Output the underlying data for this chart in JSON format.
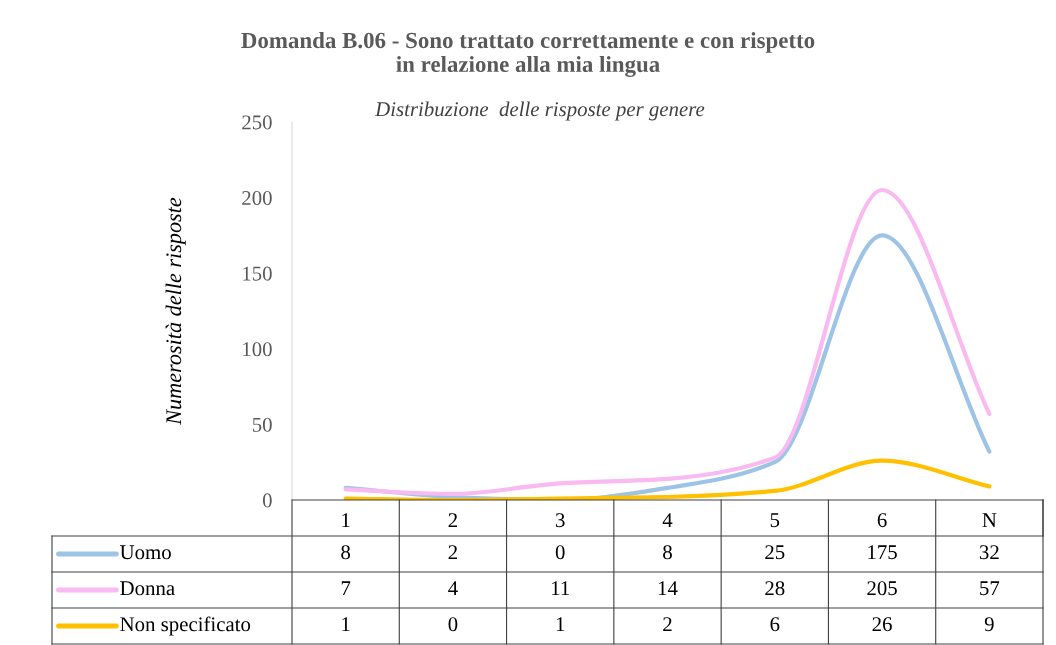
{
  "chart_data": {
    "type": "line",
    "title": "Domanda B.06 - Sono trattato correttamente e con rispetto\nin relazione alla mia lingua",
    "subtitle": "Distribuzione  delle risposte per genere",
    "ylabel": "Numerosità delle risposte",
    "categories": [
      "1",
      "2",
      "3",
      "4",
      "5",
      "6",
      "N"
    ],
    "series": [
      {
        "name": "Uomo",
        "color": "#9dc3e6",
        "values": [
          8,
          2,
          0,
          8,
          25,
          175,
          32
        ]
      },
      {
        "name": "Donna",
        "color": "#f9b9f1",
        "values": [
          7,
          4,
          11,
          14,
          28,
          205,
          57
        ]
      },
      {
        "name": "Non specificato",
        "color": "#ffc000",
        "values": [
          1,
          0,
          1,
          2,
          6,
          26,
          9
        ]
      }
    ],
    "ylim": [
      0,
      250
    ],
    "yticks": [
      0,
      50,
      100,
      150,
      200,
      250
    ],
    "grid": false,
    "legend": "bottom",
    "data_labels": true,
    "marker": "none",
    "line_style": "solid"
  }
}
